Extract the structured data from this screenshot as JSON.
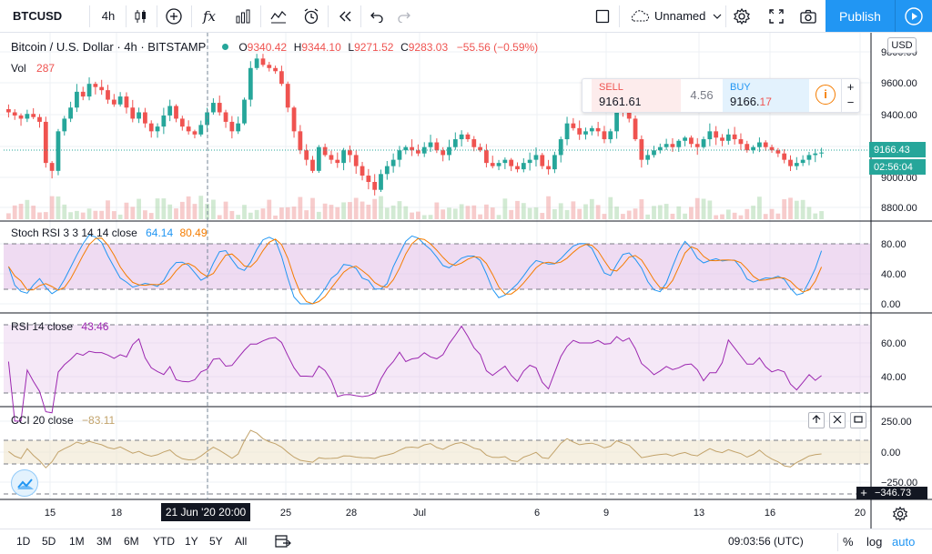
{
  "toolbar": {
    "symbol": "BTCUSD",
    "interval": "4h",
    "indicator_label": "fx",
    "layout_name": "Unnamed",
    "publish_label": "Publish"
  },
  "legend": {
    "title": "Bitcoin / U.S. Dollar · 4h · BITSTAMP",
    "o_label": "O",
    "o_value": "9340.42",
    "h_label": "H",
    "h_value": "9344.10",
    "l_label": "L",
    "l_value": "9271.52",
    "c_label": "C",
    "c_value": "9283.03",
    "change": "−55.56 (−0.59%)",
    "vol_label": "Vol",
    "vol_value": "287"
  },
  "trade": {
    "sell_label": "SELL",
    "sell_price_main": "9161.6",
    "sell_price_tail": "1",
    "spread": "4.56",
    "buy_label": "BUY",
    "buy_price_main": "9166.",
    "buy_price_tail": "17"
  },
  "price_axis": {
    "currency": "USD",
    "ticks": [
      "9800.00",
      "9600.00",
      "9400.00",
      "9166.43",
      "9000.00",
      "8800.00"
    ],
    "last_price": "9166.43",
    "countdown": "02:56:04"
  },
  "stoch": {
    "label": "Stoch RSI 3 3 14 14 close",
    "k": "64.14",
    "d": "80.49",
    "ticks": [
      "80.00",
      "40.00",
      "0.00"
    ]
  },
  "rsi": {
    "label": "RSI 14 close",
    "value": "43.46",
    "ticks": [
      "60.00",
      "40.00"
    ]
  },
  "cci": {
    "label": "CCI 20 close",
    "value": "−83.11",
    "ticks": [
      "250.00",
      "0.00",
      "−250.00"
    ],
    "last": "−346.73"
  },
  "time_axis": {
    "ticks": [
      "15",
      "18",
      "25",
      "28",
      "Jul",
      "6",
      "9",
      "13",
      "16",
      "20"
    ],
    "crosshair": "21 Jun '20   20:00"
  },
  "bottom": {
    "ranges": [
      "1D",
      "5D",
      "1M",
      "3M",
      "6M",
      "YTD",
      "1Y",
      "5Y",
      "All"
    ],
    "clock": "09:03:56 (UTC)",
    "percent": "%",
    "log": "log",
    "auto": "auto"
  },
  "colors": {
    "up": "#26a69a",
    "down": "#ef5350",
    "accent": "#2196f3",
    "stoch_k": "#2196f3",
    "stoch_d": "#f57c00",
    "rsi": "#9c27b0",
    "cci": "#c2a36b"
  },
  "chart_data": {
    "type": "candlestick",
    "price_range": [
      8750,
      9900
    ],
    "closes": [
      9420,
      9400,
      9380,
      9410,
      9390,
      9360,
      9100,
      9050,
      9300,
      9380,
      9450,
      9550,
      9520,
      9600,
      9580,
      9560,
      9500,
      9470,
      9520,
      9450,
      9380,
      9420,
      9350,
      9300,
      9330,
      9400,
      9460,
      9380,
      9330,
      9300,
      9280,
      9340,
      9420,
      9480,
      9420,
      9360,
      9300,
      9350,
      9500,
      9700,
      9760,
      9720,
      9700,
      9680,
      9600,
      9450,
      9300,
      9180,
      9120,
      9050,
      9200,
      9150,
      9120,
      9100,
      9180,
      9150,
      9080,
      9020,
      8980,
      8930,
      9030,
      9080,
      9120,
      9180,
      9200,
      9180,
      9160,
      9200,
      9230,
      9180,
      9150,
      9200,
      9250,
      9280,
      9250,
      9200,
      9180,
      9100,
      9080,
      9100,
      9120,
      9080,
      9060,
      9100,
      9120,
      9150,
      9080,
      9060,
      9150,
      9250,
      9350,
      9320,
      9280,
      9300,
      9320,
      9300,
      9250,
      9300,
      9450,
      9420,
      9380,
      9250,
      9120,
      9150,
      9180,
      9200,
      9220,
      9200,
      9240,
      9260,
      9220,
      9200,
      9250,
      9300,
      9260,
      9240,
      9280,
      9250,
      9220,
      9180,
      9200,
      9230,
      9200,
      9180,
      9160,
      9120,
      9080,
      9100,
      9120,
      9150,
      9160,
      9166
    ],
    "stoch_k_range": [
      0,
      100
    ],
    "rsi_range": [
      20,
      75
    ],
    "cci_range": [
      -350,
      300
    ]
  }
}
